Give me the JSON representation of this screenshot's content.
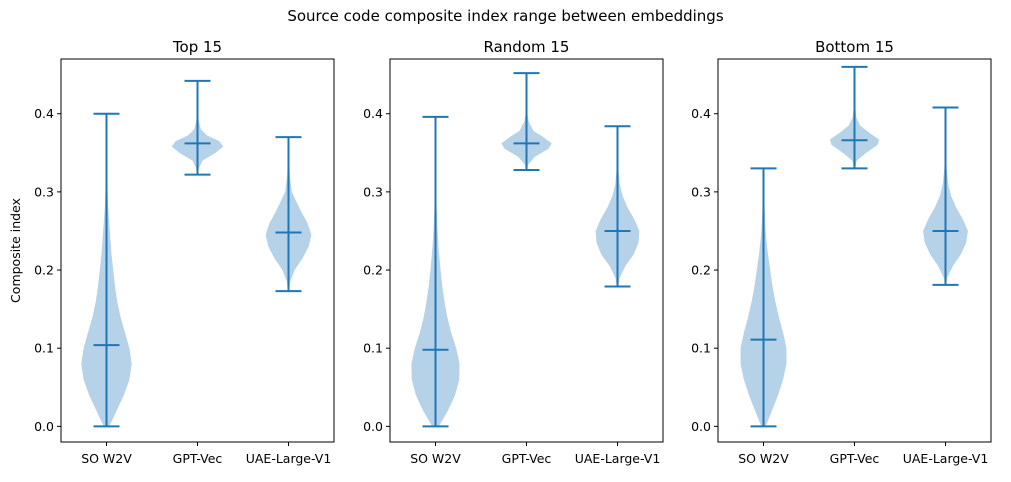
{
  "figure": {
    "title": "Source code composite index range between embeddings",
    "ylabel": "Composite index",
    "colors": {
      "body": "#aecde6",
      "line": "#1f77b4",
      "axis": "#000000"
    }
  },
  "chart_data": [
    {
      "type": "violin",
      "title": "Top 15",
      "categories": [
        "SO W2V",
        "GPT-Vec",
        "UAE-Large-V1"
      ],
      "ylabel": "Composite index",
      "ylim": [
        -0.02,
        0.47
      ],
      "yticks": [
        0.0,
        0.1,
        0.2,
        0.3,
        0.4
      ],
      "series": [
        {
          "name": "SO W2V",
          "min": 0.0,
          "max": 0.4,
          "mean": 0.104,
          "density": [
            [
              0.0,
              0.1
            ],
            [
              0.02,
              0.36
            ],
            [
              0.04,
              0.62
            ],
            [
              0.06,
              0.82
            ],
            [
              0.08,
              0.9
            ],
            [
              0.1,
              0.82
            ],
            [
              0.12,
              0.66
            ],
            [
              0.14,
              0.5
            ],
            [
              0.16,
              0.38
            ],
            [
              0.18,
              0.3
            ],
            [
              0.2,
              0.24
            ],
            [
              0.22,
              0.18
            ],
            [
              0.24,
              0.14
            ],
            [
              0.26,
              0.1
            ],
            [
              0.28,
              0.06
            ],
            [
              0.3,
              0.04
            ],
            [
              0.33,
              0.02
            ],
            [
              0.36,
              0.01
            ],
            [
              0.4,
              0.005
            ]
          ]
        },
        {
          "name": "GPT-Vec",
          "min": 0.322,
          "max": 0.442,
          "mean": 0.362,
          "density": [
            [
              0.322,
              0.02
            ],
            [
              0.33,
              0.05
            ],
            [
              0.34,
              0.18
            ],
            [
              0.35,
              0.65
            ],
            [
              0.358,
              0.92
            ],
            [
              0.365,
              0.78
            ],
            [
              0.372,
              0.35
            ],
            [
              0.38,
              0.12
            ],
            [
              0.39,
              0.05
            ],
            [
              0.4,
              0.02
            ],
            [
              0.42,
              0.01
            ],
            [
              0.442,
              0.005
            ]
          ]
        },
        {
          "name": "UAE-Large-V1",
          "min": 0.173,
          "max": 0.37,
          "mean": 0.248,
          "density": [
            [
              0.173,
              0.02
            ],
            [
              0.185,
              0.06
            ],
            [
              0.2,
              0.22
            ],
            [
              0.215,
              0.5
            ],
            [
              0.23,
              0.72
            ],
            [
              0.245,
              0.82
            ],
            [
              0.26,
              0.68
            ],
            [
              0.275,
              0.45
            ],
            [
              0.29,
              0.25
            ],
            [
              0.3,
              0.12
            ],
            [
              0.32,
              0.05
            ],
            [
              0.34,
              0.02
            ],
            [
              0.37,
              0.005
            ]
          ]
        }
      ]
    },
    {
      "type": "violin",
      "title": "Random 15",
      "categories": [
        "SO W2V",
        "GPT-Vec",
        "UAE-Large-V1"
      ],
      "ylim": [
        -0.02,
        0.47
      ],
      "yticks": [
        0.0,
        0.1,
        0.2,
        0.3,
        0.4
      ],
      "series": [
        {
          "name": "SO W2V",
          "min": 0.0,
          "max": 0.396,
          "mean": 0.098,
          "density": [
            [
              0.0,
              0.12
            ],
            [
              0.02,
              0.44
            ],
            [
              0.04,
              0.7
            ],
            [
              0.06,
              0.85
            ],
            [
              0.08,
              0.86
            ],
            [
              0.1,
              0.74
            ],
            [
              0.12,
              0.56
            ],
            [
              0.14,
              0.42
            ],
            [
              0.16,
              0.32
            ],
            [
              0.18,
              0.24
            ],
            [
              0.2,
              0.18
            ],
            [
              0.22,
              0.13
            ],
            [
              0.24,
              0.09
            ],
            [
              0.26,
              0.06
            ],
            [
              0.28,
              0.04
            ],
            [
              0.3,
              0.02
            ],
            [
              0.34,
              0.01
            ],
            [
              0.396,
              0.005
            ]
          ]
        },
        {
          "name": "GPT-Vec",
          "min": 0.328,
          "max": 0.452,
          "mean": 0.362,
          "density": [
            [
              0.328,
              0.02
            ],
            [
              0.335,
              0.06
            ],
            [
              0.345,
              0.3
            ],
            [
              0.355,
              0.78
            ],
            [
              0.362,
              0.9
            ],
            [
              0.37,
              0.6
            ],
            [
              0.378,
              0.25
            ],
            [
              0.39,
              0.08
            ],
            [
              0.4,
              0.03
            ],
            [
              0.42,
              0.01
            ],
            [
              0.452,
              0.005
            ]
          ]
        },
        {
          "name": "UAE-Large-V1",
          "min": 0.179,
          "max": 0.384,
          "mean": 0.25,
          "density": [
            [
              0.179,
              0.02
            ],
            [
              0.19,
              0.08
            ],
            [
              0.205,
              0.28
            ],
            [
              0.22,
              0.58
            ],
            [
              0.235,
              0.75
            ],
            [
              0.25,
              0.78
            ],
            [
              0.265,
              0.6
            ],
            [
              0.28,
              0.36
            ],
            [
              0.295,
              0.18
            ],
            [
              0.31,
              0.08
            ],
            [
              0.33,
              0.03
            ],
            [
              0.35,
              0.01
            ],
            [
              0.384,
              0.005
            ]
          ]
        }
      ]
    },
    {
      "type": "violin",
      "title": "Bottom 15",
      "categories": [
        "SO W2V",
        "GPT-Vec",
        "UAE-Large-V1"
      ],
      "ylim": [
        -0.02,
        0.47
      ],
      "yticks": [
        0.0,
        0.1,
        0.2,
        0.3,
        0.4
      ],
      "series": [
        {
          "name": "SO W2V",
          "min": 0.0,
          "max": 0.33,
          "mean": 0.111,
          "density": [
            [
              0.0,
              0.08
            ],
            [
              0.02,
              0.3
            ],
            [
              0.04,
              0.52
            ],
            [
              0.06,
              0.7
            ],
            [
              0.08,
              0.82
            ],
            [
              0.1,
              0.82
            ],
            [
              0.12,
              0.7
            ],
            [
              0.14,
              0.55
            ],
            [
              0.16,
              0.42
            ],
            [
              0.18,
              0.32
            ],
            [
              0.2,
              0.24
            ],
            [
              0.22,
              0.16
            ],
            [
              0.24,
              0.1
            ],
            [
              0.26,
              0.06
            ],
            [
              0.28,
              0.04
            ],
            [
              0.3,
              0.02
            ],
            [
              0.33,
              0.005
            ]
          ]
        },
        {
          "name": "GPT-Vec",
          "min": 0.33,
          "max": 0.46,
          "mean": 0.366,
          "density": [
            [
              0.33,
              0.02
            ],
            [
              0.34,
              0.08
            ],
            [
              0.35,
              0.42
            ],
            [
              0.36,
              0.82
            ],
            [
              0.367,
              0.88
            ],
            [
              0.375,
              0.55
            ],
            [
              0.385,
              0.2
            ],
            [
              0.395,
              0.07
            ],
            [
              0.41,
              0.02
            ],
            [
              0.43,
              0.01
            ],
            [
              0.46,
              0.005
            ]
          ]
        },
        {
          "name": "UAE-Large-V1",
          "min": 0.181,
          "max": 0.408,
          "mean": 0.25,
          "density": [
            [
              0.181,
              0.02
            ],
            [
              0.19,
              0.06
            ],
            [
              0.205,
              0.26
            ],
            [
              0.22,
              0.55
            ],
            [
              0.235,
              0.74
            ],
            [
              0.25,
              0.8
            ],
            [
              0.265,
              0.62
            ],
            [
              0.28,
              0.38
            ],
            [
              0.295,
              0.2
            ],
            [
              0.31,
              0.1
            ],
            [
              0.33,
              0.04
            ],
            [
              0.36,
              0.015
            ],
            [
              0.408,
              0.005
            ]
          ]
        }
      ]
    }
  ]
}
